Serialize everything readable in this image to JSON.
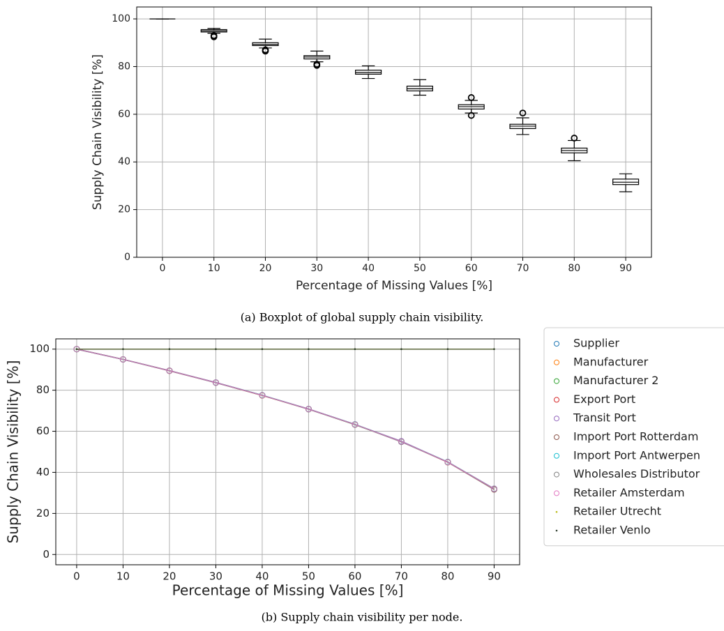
{
  "chart_data": [
    {
      "type": "box",
      "xlabel": "Percentage of Missing Values [%]",
      "ylabel": "Supply Chain Visibility [%]",
      "caption": "(a) Boxplot of global supply chain visibility.",
      "categories": [
        "0",
        "10",
        "20",
        "30",
        "40",
        "50",
        "60",
        "70",
        "80",
        "90"
      ],
      "boxes": [
        {
          "whislo": 100,
          "q1": 100,
          "med": 100,
          "q3": 100,
          "whishi": 100,
          "fliers": []
        },
        {
          "whislo": 94,
          "q1": 94.5,
          "med": 95,
          "q3": 95.5,
          "whishi": 96,
          "fliers": [
            93,
            92.5
          ]
        },
        {
          "whislo": 87.8,
          "q1": 88.8,
          "med": 89.3,
          "q3": 90,
          "whishi": 91.5,
          "fliers": [
            87,
            86.5
          ]
        },
        {
          "whislo": 82,
          "q1": 83.2,
          "med": 84,
          "q3": 84.6,
          "whishi": 86.5,
          "fliers": [
            81,
            80.5
          ]
        },
        {
          "whislo": 75,
          "q1": 76.8,
          "med": 77.5,
          "q3": 78.5,
          "whishi": 80.3,
          "fliers": []
        },
        {
          "whislo": 68,
          "q1": 69.8,
          "med": 70.7,
          "q3": 71.8,
          "whishi": 74.5,
          "fliers": []
        },
        {
          "whislo": 60.5,
          "q1": 62.2,
          "med": 63.2,
          "q3": 64,
          "whishi": 65.8,
          "fliers": [
            67,
            59.5
          ]
        },
        {
          "whislo": 51.5,
          "q1": 54,
          "med": 55,
          "q3": 55.8,
          "whishi": 58.5,
          "fliers": [
            60.5
          ]
        },
        {
          "whislo": 40.5,
          "q1": 43.8,
          "med": 44.8,
          "q3": 45.8,
          "whishi": 49,
          "fliers": [
            50
          ]
        },
        {
          "whislo": 27.5,
          "q1": 30.5,
          "med": 31.5,
          "q3": 32.8,
          "whishi": 35,
          "fliers": []
        }
      ],
      "color": "#000000",
      "ylim": [
        0,
        105
      ],
      "yticks": [
        0,
        20,
        40,
        60,
        80,
        100
      ],
      "grid": true
    },
    {
      "type": "line",
      "xlabel": "Percentage of Missing Values [%]",
      "ylabel": "Supply Chain Visibility [%]",
      "caption": "(b) Supply chain visibility per node.",
      "x": [
        0,
        10,
        20,
        30,
        40,
        50,
        60,
        70,
        80,
        90
      ],
      "series": [
        {
          "name": "Supplier",
          "color": "#1f77b4",
          "marker": "o",
          "values": [
            100,
            95,
            89.5,
            83.7,
            77.5,
            70.8,
            63.3,
            55,
            45,
            32
          ]
        },
        {
          "name": "Manufacturer",
          "color": "#ff7f0e",
          "marker": "o",
          "values": [
            100,
            95,
            89.5,
            83.7,
            77.4,
            70.8,
            63.3,
            55,
            45,
            32
          ]
        },
        {
          "name": "Manufacturer 2",
          "color": "#2ca02c",
          "marker": "o",
          "values": [
            100,
            95,
            89.5,
            83.7,
            77.5,
            70.8,
            63.2,
            55,
            45,
            32
          ]
        },
        {
          "name": "Export Port",
          "color": "#d62728",
          "marker": "o",
          "values": [
            100,
            95,
            89.4,
            83.7,
            77.5,
            70.8,
            63.3,
            55,
            44.9,
            31.8
          ]
        },
        {
          "name": "Transit Port",
          "color": "#9467bd",
          "marker": "o",
          "values": [
            100,
            95,
            89.5,
            83.8,
            77.5,
            70.9,
            63.3,
            55.2,
            45,
            32
          ]
        },
        {
          "name": "Import Port Rotterdam",
          "color": "#8c564b",
          "marker": "o",
          "values": [
            100,
            95,
            89.5,
            83.7,
            77.5,
            70.8,
            63.3,
            55,
            45,
            31.6
          ]
        },
        {
          "name": "Import Port Antwerpen",
          "color": "#17becf",
          "marker": "o",
          "values": [
            100,
            95,
            89.5,
            83.7,
            77.6,
            70.8,
            63.4,
            55,
            45.1,
            32
          ]
        },
        {
          "name": "Wholesales Distributor",
          "color": "#7f7f7f",
          "marker": "o",
          "values": [
            100,
            95,
            89.5,
            83.6,
            77.5,
            70.7,
            63.3,
            54.8,
            45,
            31.8
          ]
        },
        {
          "name": "Retailer Amsterdam",
          "color": "#e377c2",
          "marker": "o",
          "values": [
            100,
            95,
            89.5,
            83.7,
            77.5,
            70.8,
            63.3,
            55,
            45,
            32
          ]
        },
        {
          "name": "Retailer Utrecht",
          "color": "#bcbd22",
          "marker": ".",
          "values": [
            100,
            100,
            100,
            100,
            100,
            100,
            100,
            100,
            100,
            100
          ]
        },
        {
          "name": "Retailer Venlo",
          "color": "#2f3f2f",
          "marker": ".",
          "values": [
            100,
            100,
            100,
            100,
            100,
            100,
            100,
            100,
            100,
            100
          ]
        }
      ],
      "xlim": [
        -4.5,
        95.5
      ],
      "xticks": [
        0,
        10,
        20,
        30,
        40,
        50,
        60,
        70,
        80,
        90
      ],
      "ylim": [
        -5,
        105
      ],
      "yticks": [
        0,
        20,
        40,
        60,
        80,
        100
      ],
      "grid": true,
      "legend": "outside right"
    }
  ]
}
